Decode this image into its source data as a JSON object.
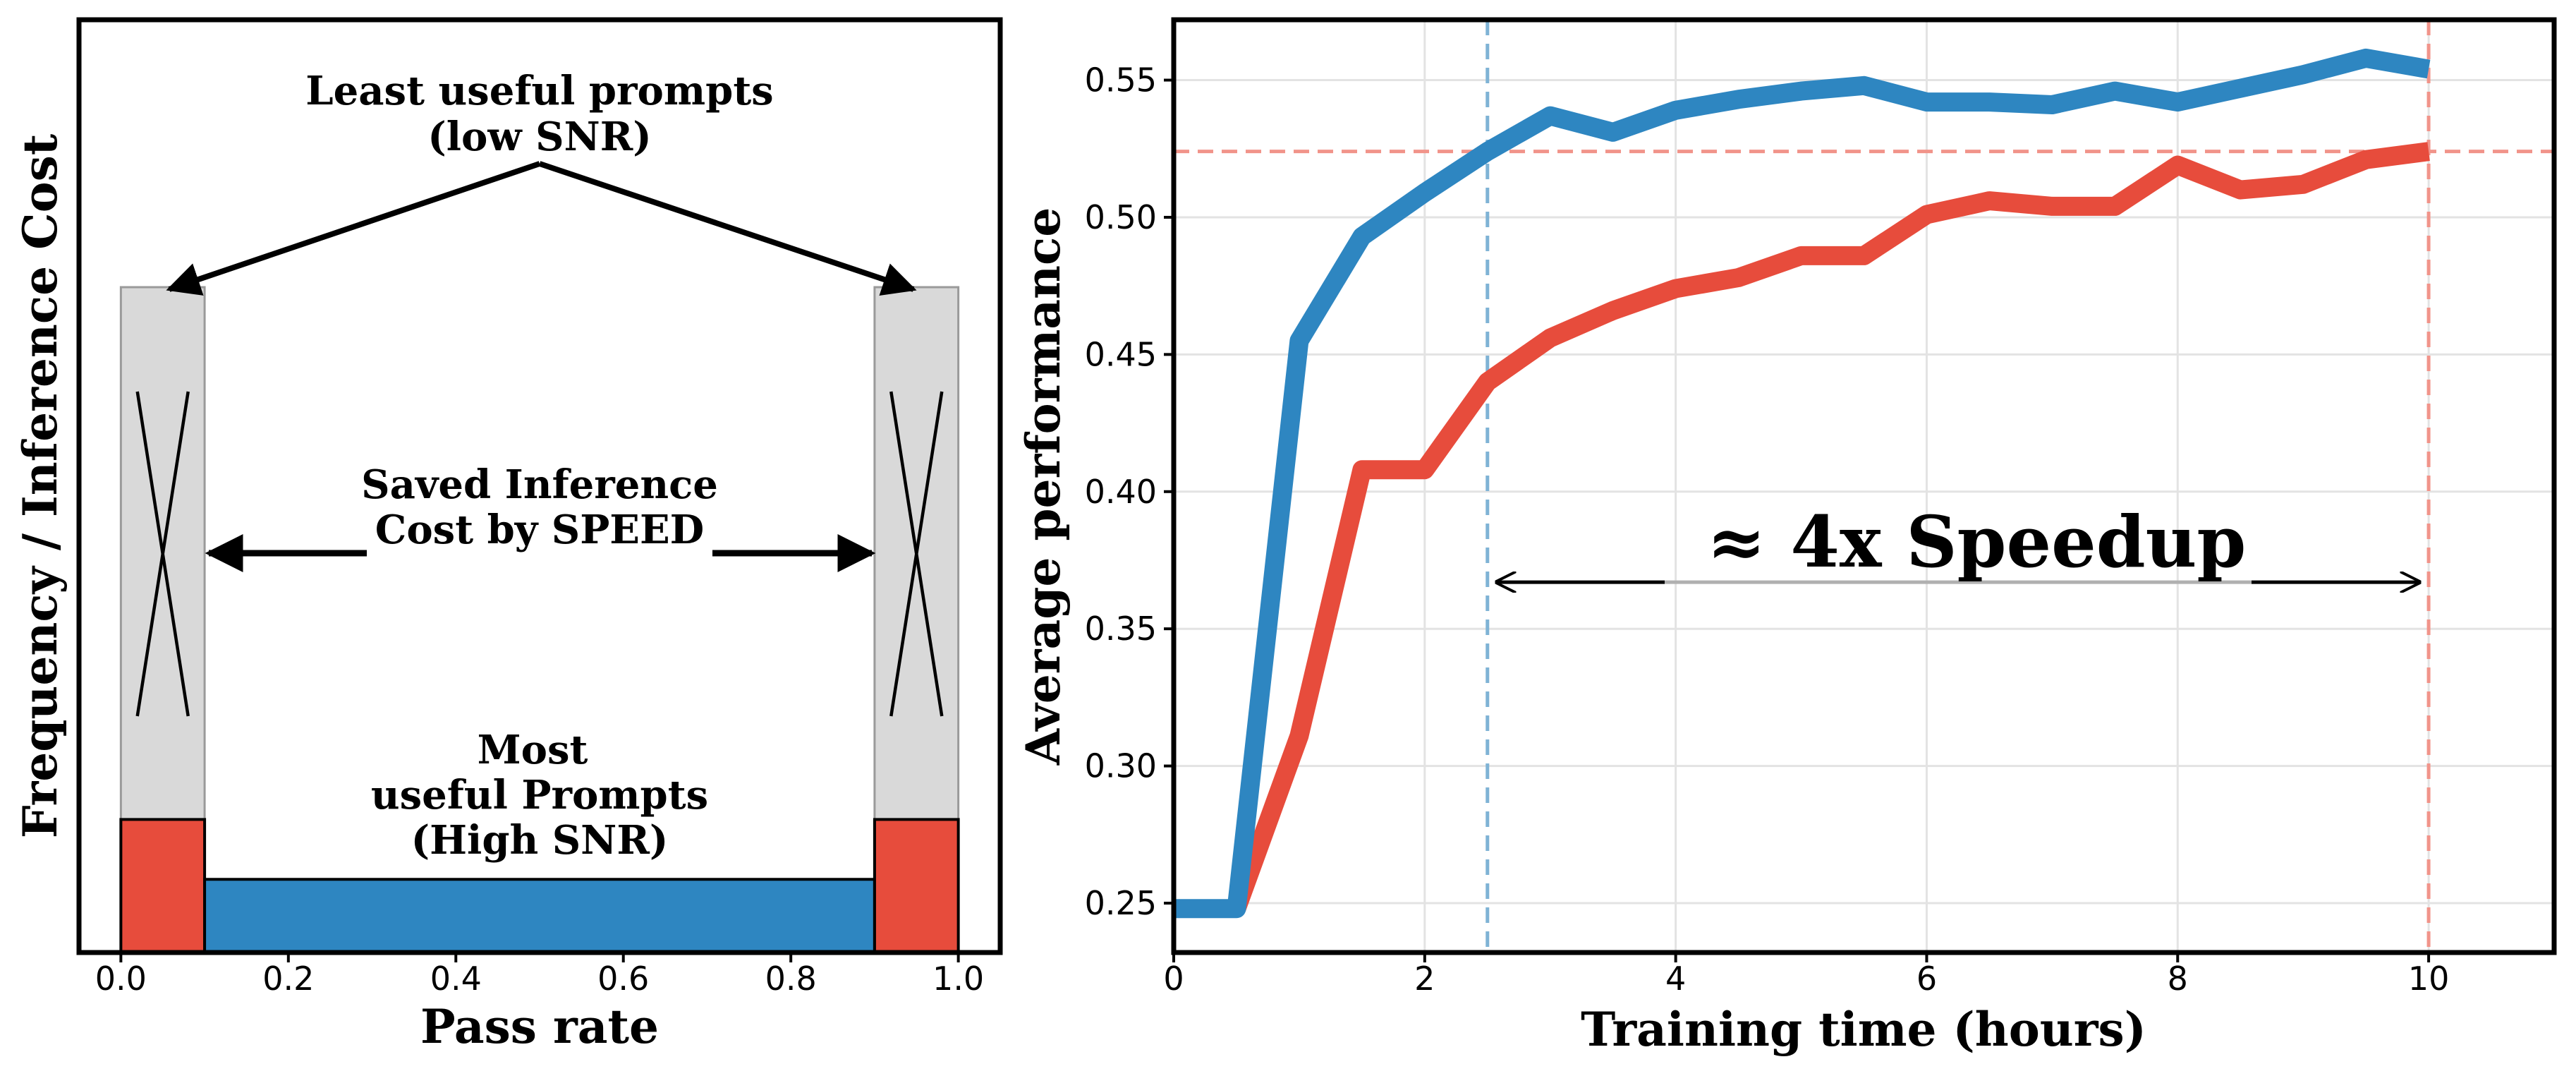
{
  "chart_data": [
    {
      "type": "bar",
      "xlabel": "Pass rate",
      "ylabel": "Frequency / Inference Cost",
      "xlim": [
        -0.05,
        1.05
      ],
      "xticks": [
        "0.0",
        "0.2",
        "0.4",
        "0.6",
        "0.8",
        "1.0"
      ],
      "grid": false,
      "bars": [
        {
          "x0": 0.0,
          "x1": 0.1,
          "height": 1.0,
          "color": "#d9d9d9",
          "role": "saved (crossed out)"
        },
        {
          "x0": 0.0,
          "x1": 0.1,
          "height": 0.2,
          "color": "#e74c3c"
        },
        {
          "x0": 0.1,
          "x1": 0.9,
          "height": 0.11,
          "color": "#2e86c1"
        },
        {
          "x0": 0.9,
          "x1": 1.0,
          "height": 1.0,
          "color": "#d9d9d9",
          "role": "saved (crossed out)"
        },
        {
          "x0": 0.9,
          "x1": 1.0,
          "height": 0.2,
          "color": "#e74c3c"
        }
      ],
      "annotations": {
        "top": [
          "Least useful prompts",
          "(low SNR)"
        ],
        "middle": [
          "Saved Inference",
          "Cost by SPEED"
        ],
        "bottom": [
          "Most",
          "useful Prompts",
          "(High SNR)"
        ]
      }
    },
    {
      "type": "line",
      "xlabel": "Training time (hours)",
      "ylabel": "Average performance",
      "xlim": [
        0,
        11
      ],
      "ylim": [
        0.232,
        0.572
      ],
      "xticks": [
        0,
        2,
        4,
        6,
        8,
        10
      ],
      "yticks": [
        "0.25",
        "0.30",
        "0.35",
        "0.40",
        "0.45",
        "0.50",
        "0.55"
      ],
      "grid": true,
      "series": [
        {
          "color": "#2e86c1",
          "x": [
            0,
            0.5,
            1.0,
            1.5,
            2.0,
            2.5,
            3.0,
            3.5,
            4.0,
            4.5,
            5.0,
            5.5,
            6.0,
            6.5,
            7.0,
            7.5,
            8.0,
            8.5,
            9.0,
            9.5,
            10.0
          ],
          "values": [
            0.248,
            0.248,
            0.455,
            0.493,
            0.509,
            0.524,
            0.537,
            0.531,
            0.539,
            0.543,
            0.546,
            0.548,
            0.542,
            0.542,
            0.541,
            0.546,
            0.542,
            0.547,
            0.552,
            0.558,
            0.554
          ]
        },
        {
          "color": "#e74c3c",
          "x": [
            0.5,
            1.0,
            1.5,
            2.0,
            2.5,
            3.0,
            3.5,
            4.0,
            4.5,
            5.0,
            5.5,
            6.0,
            6.5,
            7.0,
            7.5,
            8.0,
            8.5,
            9.0,
            9.5,
            10.0
          ],
          "values": [
            0.248,
            0.311,
            0.408,
            0.408,
            0.44,
            0.456,
            0.466,
            0.474,
            0.478,
            0.486,
            0.486,
            0.501,
            0.506,
            0.504,
            0.504,
            0.519,
            0.51,
            0.512,
            0.521,
            0.524
          ]
        }
      ],
      "reference_lines": {
        "horizontal_y": 0.524,
        "vertical_x_blue": 2.5,
        "vertical_x_red": 10.0
      },
      "speedup_arrow": {
        "from_x": 2.5,
        "to_x": 10.0,
        "y": 0.367
      },
      "annotation": "≈ 4x Speedup"
    }
  ],
  "colors": {
    "blue": "#2e86c1",
    "red": "#e74c3c",
    "gray": "#d9d9d9",
    "blue_dash": "#7fb3d5",
    "red_dash": "#f1948a"
  }
}
